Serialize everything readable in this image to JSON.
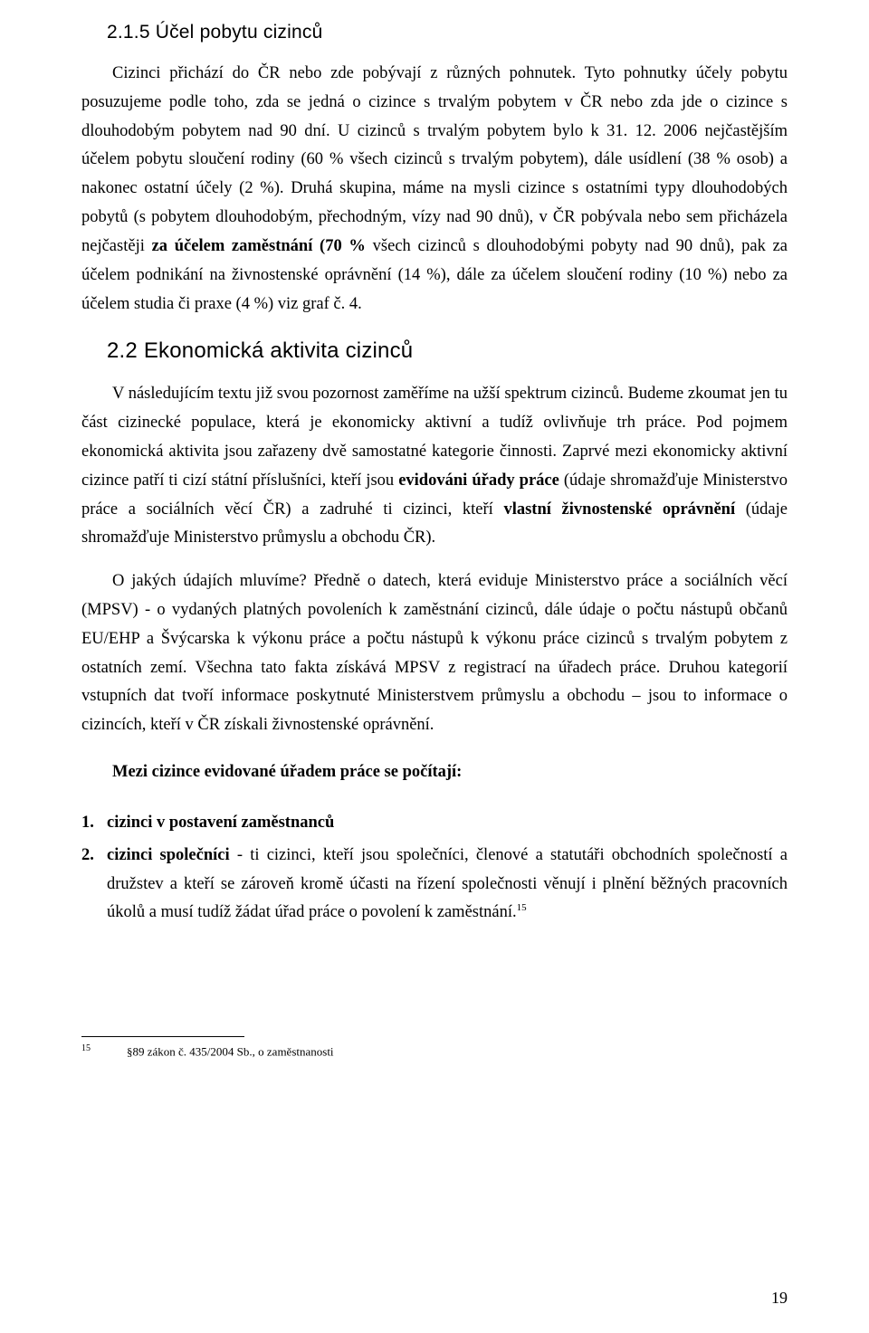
{
  "section215": {
    "heading": "2.1.5 Účel pobytu cizinců",
    "para1_pre": "Cizinci přichází do ČR nebo zde pobývají z různých pohnutek. Tyto pohnutky účely pobytu posuzujeme podle toho, zda se jedná o cizince s trvalým pobytem v ČR nebo zda jde o cizince s dlouhodobým pobytem nad 90 dní. U cizinců s trvalým pobytem bylo k 31. 12. 2006 nejčastějším účelem pobytu sloučení rodiny (60 % všech cizinců s trvalým pobytem), dále usídlení (38 % osob) a nakonec ostatní účely (2 %). Druhá skupina, máme na mysli cizince s ostatními typy dlouhodobých pobytů (s pobytem dlouhodobým, přechodným, vízy nad 90 dnů), v ČR pobývala nebo sem přicházela nejčastěji ",
    "para1_bold": "za účelem zaměstnání (70 % ",
    "para1_post": "všech cizinců s dlouhodobými pobyty nad 90 dnů), pak za účelem podnikání na živnostenské oprávnění (14 %), dále za účelem sloučení rodiny (10 %) nebo za účelem studia či praxe (4 %) viz graf č. 4."
  },
  "section22": {
    "heading": "2.2 Ekonomická aktivita cizinců",
    "para1_pre": "V následujícím textu již svou pozornost zaměříme na užší spektrum cizinců. Budeme zkoumat jen tu část cizinecké populace, která je ekonomicky aktivní a tudíž ovlivňuje trh práce. Pod pojmem ekonomická aktivita jsou zařazeny dvě samostatné kategorie činnosti. Zaprvé mezi ekonomicky aktivní cizince patří ti cizí státní příslušníci, kteří jsou ",
    "para1_bold1": "evidováni úřady práce",
    "para1_mid": " (údaje shromažďuje Ministerstvo práce a sociálních věcí ČR) a zadruhé ti cizinci, kteří ",
    "para1_bold2": "vlastní živnostenské oprávnění",
    "para1_post": " (údaje shromažďuje Ministerstvo průmyslu a obchodu ČR).",
    "para2": "O jakých údajích mluvíme? Předně o datech, která eviduje Ministerstvo práce a sociálních věcí (MPSV) - o vydaných platných povoleních k zaměstnání cizinců, dále údaje o počtu nástupů občanů EU/EHP a Švýcarska k výkonu práce a počtu nástupů k výkonu práce cizinců s trvalým pobytem z ostatních zemí. Všechna tato fakta získává MPSV z registrací na úřadech práce. Druhou kategorií vstupních dat tvoří informace poskytnuté Ministerstvem průmyslu a obchodu – jsou to informace o cizincích, kteří v ČR získali živnostenské oprávnění.",
    "subheading": "Mezi cizince evidované úřadem práce se počítají:",
    "list": {
      "item1": "cizinci v postavení zaměstnanců",
      "item2_bold": "cizinci společníci",
      "item2_rest": " - ti cizinci, kteří jsou společníci, členové a statutáři obchodních společností a družstev a kteří se zároveň kromě účasti na řízení společnosti věnují i plnění běžných pracovních úkolů a musí tudíž žádat úřad práce o povolení k zaměstnání."
    }
  },
  "footnote": {
    "num": "15",
    "text": "§89 zákon č. 435/2004 Sb., o zaměstnanosti"
  },
  "page_number": "19",
  "sup15": "15"
}
